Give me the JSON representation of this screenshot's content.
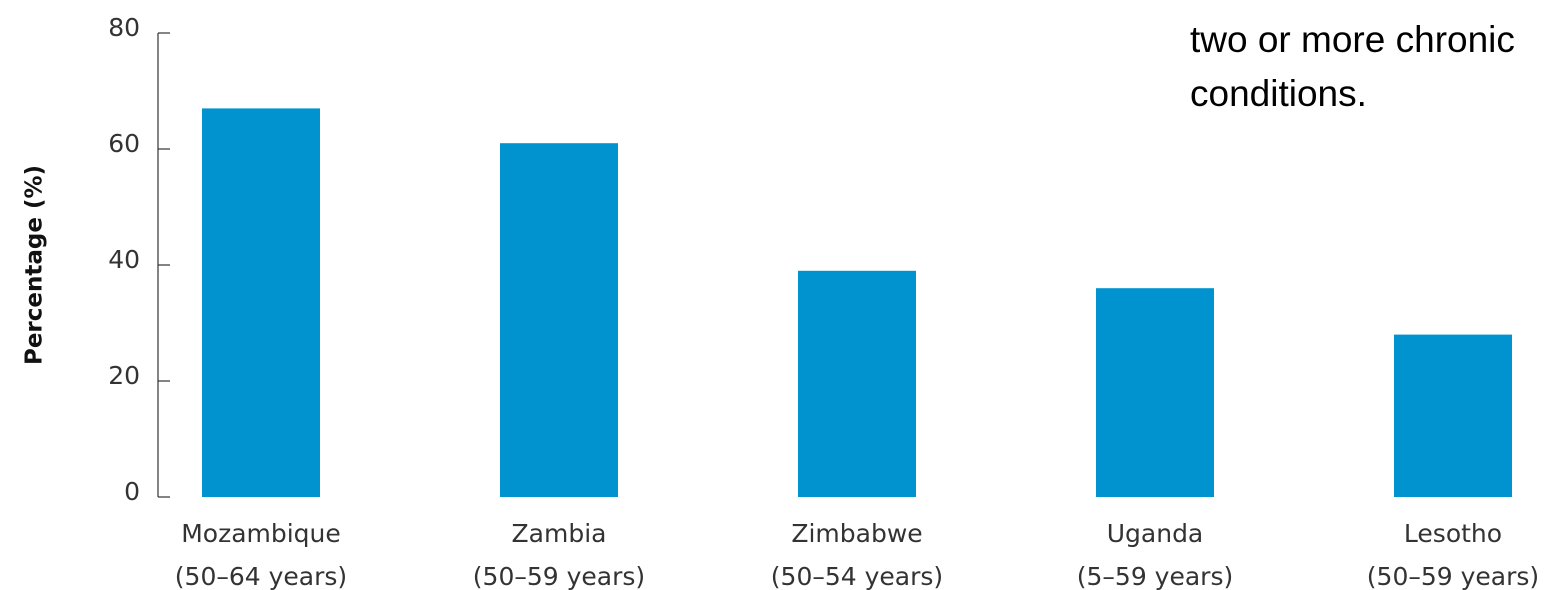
{
  "chart_data": {
    "type": "bar",
    "ylabel": "Percentage (%)",
    "annotation": [
      "two or more chronic",
      "conditions."
    ],
    "categories": [
      [
        "Mozambique",
        "(50–64 years)"
      ],
      [
        "Zambia",
        "(50–59 years)"
      ],
      [
        "Zimbabwe",
        "(50–54 years)"
      ],
      [
        "Uganda",
        "(5–59 years)"
      ],
      [
        "Lesotho",
        "(50–59 years)"
      ]
    ],
    "values": [
      67,
      61,
      39,
      36,
      28
    ],
    "color": "#0093d0",
    "ylim": [
      0,
      80
    ],
    "yticks": [
      0,
      20,
      40,
      60,
      80
    ],
    "grid": false
  }
}
